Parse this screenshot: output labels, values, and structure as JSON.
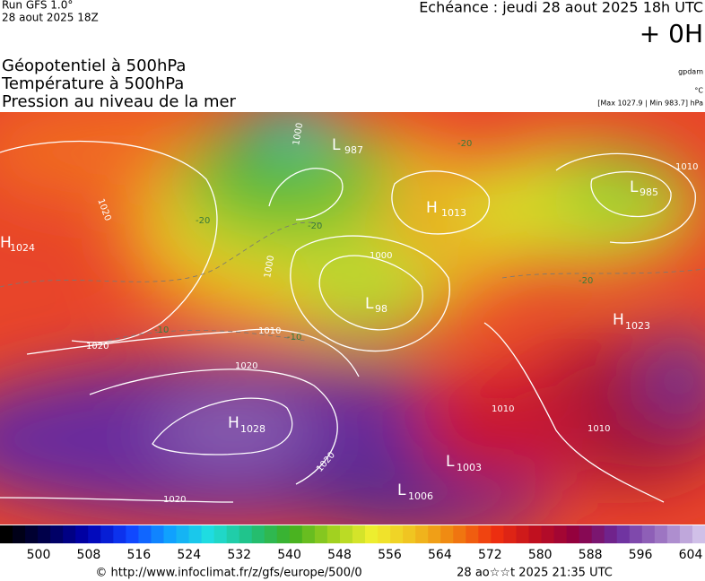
{
  "header": {
    "run": "Run GFS 1.0°",
    "run_date": "28 aout 2025 18Z",
    "echeance": "Echéance : jeudi 28 aout 2025 18h UTC",
    "offset": "+ 0H",
    "titles": [
      "Géopotentiel à 500hPa",
      "Température à 500hPa",
      "Pression au niveau de la mer"
    ],
    "unit_geo": "gpdam",
    "unit_temp": "°C",
    "pressure_range": "[Max 1027.9 | Min 983.7] hPa"
  },
  "map": {
    "centers": [
      {
        "kind": "L",
        "value": "987"
      },
      {
        "kind": "H",
        "value": "1013"
      },
      {
        "kind": "L",
        "value": "985"
      },
      {
        "kind": "H",
        "value": "1024"
      },
      {
        "kind": "L",
        "value": "98"
      },
      {
        "kind": "H",
        "value": "1023"
      },
      {
        "kind": "H",
        "value": "1028"
      },
      {
        "kind": "L",
        "value": "1003"
      },
      {
        "kind": "L",
        "value": "1006"
      }
    ],
    "isobar_labels": [
      "1000",
      "1020",
      "1010",
      "1020",
      "1020",
      "1020",
      "1010",
      "1010",
      "1010",
      "1000",
      "1000",
      "1020"
    ],
    "temp_labels": [
      "-20",
      "-20",
      "-10",
      "-10",
      "-20",
      "-20"
    ]
  },
  "colorbar": {
    "ticks": [
      500,
      508,
      516,
      524,
      532,
      540,
      548,
      556,
      564,
      572,
      580,
      588,
      596,
      604
    ]
  },
  "footer": {
    "source": "© http://www.infoclimat.fr/z/gfs/europe/500/0",
    "generated": "28 ao☆☆t 2025 21:35 UTC"
  }
}
